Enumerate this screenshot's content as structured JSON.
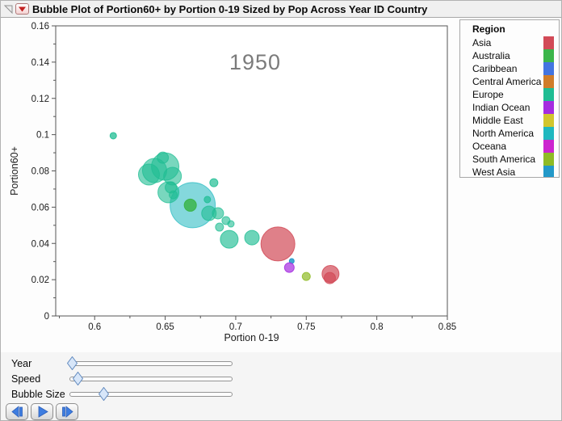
{
  "window": {
    "title": "Bubble Plot of Portion60+ by Portion 0-19 Sized by Pop Across Year ID Country"
  },
  "chart_data": {
    "type": "scatter",
    "subtype": "bubble",
    "year_annotation": "1950",
    "xlabel": "Portion 0-19",
    "ylabel": "Portion60+",
    "x_axis": {
      "min": 0.5724,
      "max": 0.85,
      "major_ticks": [
        0.6,
        0.65,
        0.7,
        0.75,
        0.8,
        0.85
      ],
      "major_labels": [
        "0.6",
        "0.65",
        "0.7",
        "0.75",
        "0.8",
        "0.85"
      ],
      "minor_ticks": [
        0.575,
        0.625,
        0.675,
        0.725,
        0.775,
        0.825
      ]
    },
    "y_axis": {
      "min": 0,
      "max": 0.16,
      "major_ticks": [
        0,
        0.02,
        0.04,
        0.06,
        0.08,
        0.1,
        0.12,
        0.14,
        0.16
      ],
      "major_labels": [
        "0",
        "0.02",
        "0.04",
        "0.06",
        "0.08",
        "0.1",
        "0.12",
        "0.14",
        "0.16"
      ],
      "minor_ticks": [
        0.01,
        0.03,
        0.05,
        0.07,
        0.09,
        0.11,
        0.13,
        0.15
      ]
    },
    "grid": false,
    "legend_position": "right",
    "points": [
      {
        "region": "Europe",
        "x": 0.6425,
        "y": 0.0802,
        "r": 15,
        "o": 0.6
      },
      {
        "region": "Europe",
        "x": 0.65,
        "y": 0.0824,
        "r": 17,
        "o": 0.6
      },
      {
        "region": "Europe",
        "x": 0.6385,
        "y": 0.078,
        "r": 13,
        "o": 0.6
      },
      {
        "region": "Europe",
        "x": 0.6483,
        "y": 0.0873,
        "r": 7,
        "o": 0.6
      },
      {
        "region": "Europe",
        "x": 0.6552,
        "y": 0.0771,
        "r": 11,
        "o": 0.6
      },
      {
        "region": "Europe",
        "x": 0.6132,
        "y": 0.0994,
        "r": 4,
        "o": 0.75
      },
      {
        "region": "North America",
        "x": 0.6695,
        "y": 0.0611,
        "r": 28,
        "o": 0.55
      },
      {
        "region": "Europe",
        "x": 0.6523,
        "y": 0.0682,
        "r": 13,
        "o": 0.6
      },
      {
        "region": "Europe",
        "x": 0.654,
        "y": 0.0709,
        "r": 7,
        "o": 0.6
      },
      {
        "region": "Europe",
        "x": 0.6557,
        "y": 0.0668,
        "r": 5,
        "o": 0.6
      },
      {
        "region": "Australia",
        "x": 0.6678,
        "y": 0.0611,
        "r": 7.5,
        "o": 0.85
      },
      {
        "region": "Europe",
        "x": 0.6845,
        "y": 0.0735,
        "r": 5,
        "o": 0.7
      },
      {
        "region": "Europe",
        "x": 0.6799,
        "y": 0.0642,
        "r": 4,
        "o": 0.7
      },
      {
        "region": "Europe",
        "x": 0.681,
        "y": 0.0566,
        "r": 9,
        "o": 0.6
      },
      {
        "region": "Europe",
        "x": 0.6874,
        "y": 0.0566,
        "r": 7,
        "o": 0.6
      },
      {
        "region": "Europe",
        "x": 0.6931,
        "y": 0.0526,
        "r": 5,
        "o": 0.6
      },
      {
        "region": "Europe",
        "x": 0.6885,
        "y": 0.049,
        "r": 5,
        "o": 0.6
      },
      {
        "region": "Europe",
        "x": 0.6966,
        "y": 0.0508,
        "r": 4,
        "o": 0.6
      },
      {
        "region": "Europe",
        "x": 0.6954,
        "y": 0.0423,
        "r": 11,
        "o": 0.65
      },
      {
        "region": "Europe",
        "x": 0.7115,
        "y": 0.0432,
        "r": 9,
        "o": 0.65
      },
      {
        "region": "Asia",
        "x": 0.7299,
        "y": 0.0397,
        "r": 21,
        "o": 0.7
      },
      {
        "region": "West Asia",
        "x": 0.7397,
        "y": 0.0303,
        "r": 3,
        "o": 0.85
      },
      {
        "region": "Indian Ocean",
        "x": 0.738,
        "y": 0.0267,
        "r": 6,
        "o": 0.7
      },
      {
        "region": "South America",
        "x": 0.75,
        "y": 0.0218,
        "r": 5,
        "o": 0.7
      },
      {
        "region": "Asia",
        "x": 0.7672,
        "y": 0.0232,
        "r": 10.5,
        "o": 0.7
      },
      {
        "region": "Asia",
        "x": 0.7667,
        "y": 0.0209,
        "r": 7,
        "o": 0.7
      }
    ]
  },
  "legend": {
    "title": "Region",
    "items": [
      {
        "label": "Asia",
        "color": "#d24a57"
      },
      {
        "label": "Australia",
        "color": "#3bb54a"
      },
      {
        "label": "Caribbean",
        "color": "#4375e1"
      },
      {
        "label": "Central America",
        "color": "#d07d2a"
      },
      {
        "label": "Europe",
        "color": "#1fbd93"
      },
      {
        "label": "Indian Ocean",
        "color": "#a52ce0"
      },
      {
        "label": "Middle East",
        "color": "#d2c62c"
      },
      {
        "label": "North America",
        "color": "#1fb8bf"
      },
      {
        "label": "Oceana",
        "color": "#cc25cf"
      },
      {
        "label": "South America",
        "color": "#8fbb25"
      },
      {
        "label": "West Asia",
        "color": "#2399c9"
      }
    ]
  },
  "sliders": [
    {
      "label": "Year",
      "value": 0.015
    },
    {
      "label": "Speed",
      "value": 0.05
    },
    {
      "label": "Bubble Size",
      "value": 0.208
    }
  ],
  "playback": {
    "buttons": [
      {
        "name": "step-back"
      },
      {
        "name": "play"
      },
      {
        "name": "step-forward"
      }
    ],
    "glyph_color": "#3e7de0",
    "glyph_stroke": "#2e5fb8"
  },
  "colors": {
    "frame": "#555555",
    "tick_text": "#1c1c1c",
    "year_text": "#7b7b7b",
    "red_triangle": "#c32222",
    "disclosure_stroke": "#909090"
  }
}
